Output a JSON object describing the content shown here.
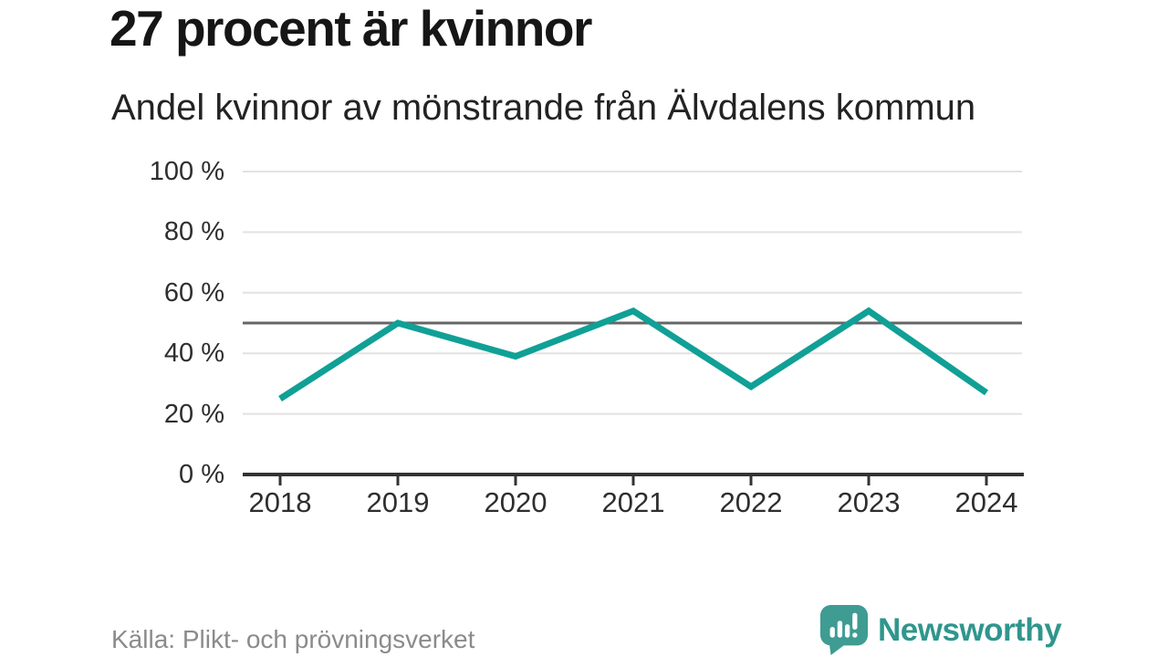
{
  "header": {
    "title": "27 procent är kvinnor",
    "subtitle": "Andel kvinnor av mönstrande från Älvdalens kommun"
  },
  "chart_data": {
    "type": "line",
    "title": "27 procent är kvinnor",
    "subtitle": "Andel kvinnor av mönstrande från Älvdalens kommun",
    "x": [
      "2018",
      "2019",
      "2020",
      "2021",
      "2022",
      "2023",
      "2024"
    ],
    "series": [
      {
        "name": "Andel kvinnor av mönstrande",
        "values": [
          25,
          50,
          39,
          54,
          29,
          54,
          27
        ]
      }
    ],
    "unit": "%",
    "ylim": [
      0,
      100
    ],
    "yticks": [
      0,
      20,
      40,
      60,
      80,
      100
    ],
    "ytick_labels": [
      "0 %",
      "20 %",
      "40 %",
      "60 %",
      "80 %",
      "100 %"
    ],
    "reference_line": 50,
    "grid": true,
    "legend_position": "none",
    "line_color": "#10a096",
    "reference_line_color": "#666666",
    "gridline_color": "#e2e2e2",
    "axis_color": "#333333"
  },
  "footer": {
    "source": "Källa: Plikt- och prövningsverket",
    "brand": "Newsworthy",
    "brand_text_color": "#2f968d",
    "brand_icon_color": "#3e9c92",
    "brand_icon": "speech-bubble-bar-chart-icon"
  }
}
